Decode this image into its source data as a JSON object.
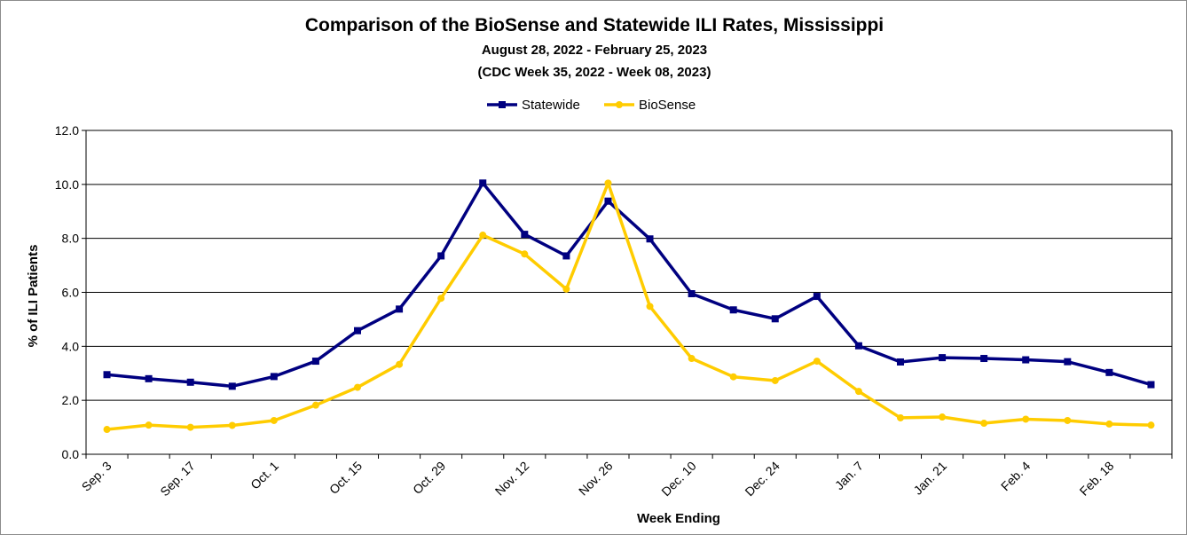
{
  "chart_data": {
    "type": "line",
    "title": "Comparison of the BioSense and Statewide ILI Rates, Mississippi",
    "subtitle": "August 28, 2022 - February 25, 2023",
    "subtitle2": "(CDC Week 35, 2022 - Week 08, 2023)",
    "xlabel": "Week Ending",
    "ylabel": "% of ILI Patients",
    "ylim": [
      0,
      12
    ],
    "yticks": [
      "0.0",
      "2.0",
      "4.0",
      "6.0",
      "8.0",
      "10.0",
      "12.0"
    ],
    "x": [
      "Sep. 3",
      "Sep. 10",
      "Sep. 17",
      "Sep. 24",
      "Oct. 1",
      "Oct. 8",
      "Oct. 15",
      "Oct. 22",
      "Oct. 29",
      "Nov. 5",
      "Nov. 12",
      "Nov. 19",
      "Nov. 26",
      "Dec. 3",
      "Dec. 10",
      "Dec. 17",
      "Dec. 24",
      "Dec. 31",
      "Jan. 7",
      "Jan. 14",
      "Jan. 21",
      "Jan. 28",
      "Feb. 4",
      "Feb. 11",
      "Feb. 18",
      "Feb. 25"
    ],
    "xtick_labels": [
      "Sep. 3",
      "",
      "Sep. 17",
      "",
      "Oct. 1",
      "",
      "Oct. 15",
      "",
      "Oct. 29",
      "",
      "Nov. 12",
      "",
      "Nov. 26",
      "",
      "Dec. 10",
      "",
      "Dec. 24",
      "",
      "Jan. 7",
      "",
      "Jan. 21",
      "",
      "Feb. 4",
      "",
      "Feb. 18",
      ""
    ],
    "grid": true,
    "legend_position": "top",
    "series": [
      {
        "name": "Statewide",
        "color": "#000080",
        "marker": "square",
        "values": [
          2.95,
          2.8,
          2.67,
          2.52,
          2.88,
          3.45,
          4.58,
          5.38,
          7.35,
          10.05,
          8.15,
          7.35,
          9.38,
          7.98,
          5.95,
          5.35,
          5.02,
          5.85,
          4.02,
          3.42,
          3.58,
          3.55,
          3.5,
          3.43,
          3.03,
          2.58
        ]
      },
      {
        "name": "BioSense",
        "color": "#FFCC00",
        "marker": "circle",
        "values": [
          0.92,
          1.08,
          1.0,
          1.07,
          1.25,
          1.82,
          2.48,
          3.33,
          5.78,
          8.12,
          7.42,
          6.12,
          10.05,
          5.48,
          3.55,
          2.87,
          2.73,
          3.45,
          2.33,
          1.35,
          1.38,
          1.15,
          1.3,
          1.25,
          1.12,
          1.08
        ]
      }
    ]
  }
}
